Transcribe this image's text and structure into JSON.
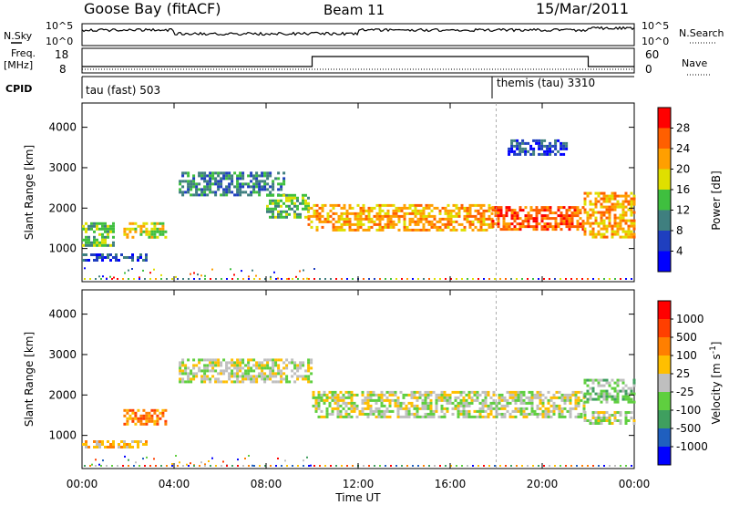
{
  "header": {
    "station": "Goose Bay (fitACF)",
    "beam": "Beam 11",
    "date": "15/Mar/2011"
  },
  "panels": {
    "nsky_label": "N.Sky",
    "nsearch_label": "N.Search",
    "freq_label": "Freq.",
    "freq_unit": "[MHz]",
    "nave_label": "Nave",
    "cpid_label": "CPID",
    "nsky_ticks": [
      "10^5",
      "10^0"
    ],
    "nsearch_ticks": [
      "10^5",
      "10^0"
    ],
    "freq_ticks": [
      "18",
      "8"
    ],
    "nave_ticks": [
      "60",
      "0"
    ],
    "cpid_modes": [
      {
        "label": "tau (fast) 503",
        "start_hour": 0
      },
      {
        "label": "themis (tau) 3310",
        "start_hour": 18
      }
    ]
  },
  "xaxis": {
    "label": "Time UT",
    "ticks": [
      "00:00",
      "04:00",
      "08:00",
      "12:00",
      "16:00",
      "20:00",
      "00:00"
    ]
  },
  "chart_data": [
    {
      "type": "heatmap",
      "title": "Power",
      "xlabel": "Time UT",
      "ylabel": "Slant Range [km]",
      "xlim": [
        0,
        24
      ],
      "ylim": [
        180,
        4600
      ],
      "yticks": [
        1000,
        2000,
        3000,
        4000
      ],
      "colorbar": {
        "label": "Power [dB]",
        "ticks": [
          "4",
          "8",
          "12",
          "16",
          "20",
          "24",
          "28"
        ],
        "colors": [
          "#0000ff",
          "#1f3fbf",
          "#3f7f7f",
          "#3fbf3f",
          "#dfdf00",
          "#ff9f00",
          "#ff5f00",
          "#ff0000"
        ]
      },
      "regions": [
        {
          "t0": 0.0,
          "t1": 1.4,
          "r0": 1100,
          "r1": 1650,
          "level": 3
        },
        {
          "t0": 0.0,
          "t1": 2.8,
          "r0": 700,
          "r1": 880,
          "level": 1
        },
        {
          "t0": 1.8,
          "t1": 3.6,
          "r0": 1250,
          "r1": 1650,
          "level": 4
        },
        {
          "t0": 4.2,
          "t1": 8.8,
          "r0": 2350,
          "r1": 2900,
          "level": 2
        },
        {
          "t0": 8.0,
          "t1": 9.8,
          "r0": 1750,
          "r1": 2350,
          "level": 3
        },
        {
          "t0": 9.8,
          "t1": 17.8,
          "r0": 1450,
          "r1": 2100,
          "level": 5
        },
        {
          "t0": 17.8,
          "t1": 21.8,
          "r0": 1500,
          "r1": 2050,
          "level": 6
        },
        {
          "t0": 21.8,
          "t1": 24.0,
          "r0": 1300,
          "r1": 2400,
          "level": 5
        },
        {
          "t0": 18.5,
          "t1": 21.0,
          "r0": 3300,
          "r1": 3700,
          "level": 1
        }
      ]
    },
    {
      "type": "heatmap",
      "title": "Velocity",
      "xlabel": "Time UT",
      "ylabel": "Slant Range [km]",
      "xlim": [
        0,
        24
      ],
      "ylim": [
        180,
        4600
      ],
      "yticks": [
        1000,
        2000,
        3000,
        4000
      ],
      "colorbar": {
        "label": "Velocity [m s^-1]",
        "ticks": [
          "1000",
          "500",
          "100",
          "25",
          "-25",
          "-100",
          "-500",
          "-1000"
        ],
        "colors": [
          "#0000ff",
          "#1f5fbf",
          "#3f9f5f",
          "#5fcf3f",
          "#bfbfbf",
          "#ffbf00",
          "#ff7f00",
          "#ff3f00",
          "#ff0000"
        ]
      },
      "regions": [
        {
          "t0": 0.0,
          "t1": 2.8,
          "r0": 700,
          "r1": 880,
          "level": 5
        },
        {
          "t0": 1.8,
          "t1": 3.6,
          "r0": 1250,
          "r1": 1650,
          "level": 6
        },
        {
          "t0": 4.2,
          "t1": 10.0,
          "r0": 2300,
          "r1": 2900,
          "level": 4
        },
        {
          "t0": 10.0,
          "t1": 21.8,
          "r0": 1450,
          "r1": 2100,
          "level": 4
        },
        {
          "t0": 21.8,
          "t1": 24.0,
          "r0": 1800,
          "r1": 2400,
          "level": 3
        },
        {
          "t0": 21.8,
          "t1": 24.0,
          "r0": 1300,
          "r1": 1600,
          "level": 4
        }
      ]
    }
  ]
}
